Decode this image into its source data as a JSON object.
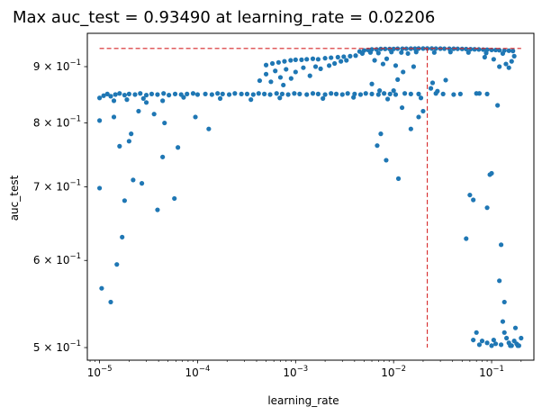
{
  "chart_data": {
    "type": "scatter",
    "title": "Max auc_test = 0.93490 at learning_rate = 0.02206",
    "xlabel": "learning_rate",
    "ylabel": "auc_test",
    "xscale": "log",
    "yscale": "log",
    "xlim": [
      7.5e-06,
      0.27
    ],
    "ylim": [
      0.487,
      0.965
    ],
    "x_ticks": [
      {
        "value": 1e-05,
        "base": "10",
        "exp": "−5"
      },
      {
        "value": 0.0001,
        "base": "10",
        "exp": "−4"
      },
      {
        "value": 0.001,
        "base": "10",
        "exp": "−3"
      },
      {
        "value": 0.01,
        "base": "10",
        "exp": "−2"
      },
      {
        "value": 0.1,
        "base": "10",
        "exp": "−1"
      }
    ],
    "y_ticks": [
      {
        "value": 0.5,
        "mant": "5",
        "base": "10",
        "exp": "−1"
      },
      {
        "value": 0.6,
        "mant": "6",
        "base": "10",
        "exp": "−1"
      },
      {
        "value": 0.7,
        "mant": "7",
        "base": "10",
        "exp": "−1"
      },
      {
        "value": 0.8,
        "mant": "8",
        "base": "10",
        "exp": "−1"
      },
      {
        "value": 0.9,
        "mant": "9",
        "base": "10",
        "exp": "−1"
      }
    ],
    "best": {
      "x": 0.02206,
      "y": 0.9349
    },
    "ref_line_x_start": 1e-05,
    "ref_line_x_end": 0.2,
    "ref_line_y_bottom": 0.5,
    "colors": {
      "points": "#1f77b4",
      "reference": "#d62728"
    },
    "grid": false,
    "series": [
      {
        "points": [
          [
            1e-05,
            0.698
          ],
          [
            1e-05,
            0.804
          ],
          [
            1.05e-05,
            0.566
          ],
          [
            1.3e-05,
            0.55
          ],
          [
            1.5e-05,
            0.595
          ],
          [
            1.4e-05,
            0.81
          ],
          [
            1.6e-05,
            0.762
          ],
          [
            1.7e-05,
            0.63
          ],
          [
            1.8e-05,
            0.68
          ],
          [
            2e-05,
            0.77
          ],
          [
            2.1e-05,
            0.782
          ],
          [
            2.2e-05,
            0.71
          ],
          [
            2.5e-05,
            0.82
          ],
          [
            2.7e-05,
            0.705
          ],
          [
            3e-05,
            0.835
          ],
          [
            3.6e-05,
            0.815
          ],
          [
            3.9e-05,
            0.667
          ],
          [
            4.4e-05,
            0.745
          ],
          [
            4.6e-05,
            0.8
          ],
          [
            5.8e-05,
            0.683
          ],
          [
            6.3e-05,
            0.76
          ],
          [
            9.5e-05,
            0.81
          ],
          [
            0.00013,
            0.79
          ],
          [
            1e-05,
            0.843
          ],
          [
            1.1e-05,
            0.847
          ],
          [
            1.2e-05,
            0.85
          ],
          [
            1.3e-05,
            0.846
          ],
          [
            1.45e-05,
            0.849
          ],
          [
            1.6e-05,
            0.851
          ],
          [
            1.8e-05,
            0.848
          ],
          [
            2e-05,
            0.85
          ],
          [
            2.3e-05,
            0.849
          ],
          [
            2.6e-05,
            0.851
          ],
          [
            3e-05,
            0.848
          ],
          [
            3.4e-05,
            0.85
          ],
          [
            3.9e-05,
            0.849
          ],
          [
            4.5e-05,
            0.851
          ],
          [
            5.1e-05,
            0.848
          ],
          [
            5.9e-05,
            0.85
          ],
          [
            6.8e-05,
            0.849
          ],
          [
            7.8e-05,
            0.85
          ],
          [
            9e-05,
            0.851
          ],
          [
            0.0001,
            0.849
          ],
          [
            0.00012,
            0.85
          ],
          [
            0.00014,
            0.849
          ],
          [
            0.00016,
            0.851
          ],
          [
            0.00018,
            0.85
          ],
          [
            0.00021,
            0.849
          ],
          [
            0.00024,
            0.851
          ],
          [
            0.00028,
            0.85
          ],
          [
            0.00032,
            0.85
          ],
          [
            0.00037,
            0.849
          ],
          [
            0.00042,
            0.851
          ],
          [
            0.00048,
            0.85
          ],
          [
            0.00055,
            0.849
          ],
          [
            0.00064,
            0.851
          ],
          [
            0.00073,
            0.85
          ],
          [
            0.00084,
            0.849
          ],
          [
            0.00097,
            0.851
          ],
          [
            0.0011,
            0.85
          ],
          [
            0.0013,
            0.849
          ],
          [
            0.0015,
            0.851
          ],
          [
            0.0017,
            0.85
          ],
          [
            0.002,
            0.849
          ],
          [
            0.0023,
            0.851
          ],
          [
            0.0026,
            0.85
          ],
          [
            0.003,
            0.849
          ],
          [
            0.0034,
            0.851
          ],
          [
            0.004,
            0.85
          ],
          [
            0.0046,
            0.849
          ],
          [
            0.0052,
            0.851
          ],
          [
            0.006,
            0.85
          ],
          [
            0.007,
            0.849
          ],
          [
            0.008,
            0.851
          ],
          [
            0.0092,
            0.85
          ],
          [
            0.0105,
            0.849
          ],
          [
            0.013,
            0.851
          ],
          [
            0.015,
            0.85
          ],
          [
            0.018,
            0.85
          ],
          [
            0.027,
            0.851
          ],
          [
            0.032,
            0.85
          ],
          [
            0.041,
            0.849
          ],
          [
            0.048,
            0.85
          ],
          [
            0.075,
            0.851
          ],
          [
            0.09,
            0.85
          ],
          [
            1.4e-05,
            0.838
          ],
          [
            1.9e-05,
            0.84
          ],
          [
            2.8e-05,
            0.842
          ],
          [
            4.4e-05,
            0.838
          ],
          [
            7.2e-05,
            0.844
          ],
          [
            0.00017,
            0.842
          ],
          [
            0.00035,
            0.84
          ],
          [
            0.00069,
            0.843
          ],
          [
            0.0019,
            0.842
          ],
          [
            0.0039,
            0.844
          ],
          [
            0.0087,
            0.841
          ],
          [
            0.019,
            0.843
          ],
          [
            0.00043,
            0.874
          ],
          [
            0.0005,
            0.886
          ],
          [
            0.00056,
            0.872
          ],
          [
            0.00062,
            0.892
          ],
          [
            0.0007,
            0.88
          ],
          [
            0.00075,
            0.866
          ],
          [
            0.0008,
            0.895
          ],
          [
            0.0009,
            0.878
          ],
          [
            0.001,
            0.89
          ],
          [
            0.0012,
            0.898
          ],
          [
            0.0014,
            0.883
          ],
          [
            0.0016,
            0.9
          ],
          [
            0.0018,
            0.896
          ],
          [
            0.0022,
            0.902
          ],
          [
            0.0025,
            0.906
          ],
          [
            0.0029,
            0.91
          ],
          [
            0.0033,
            0.912
          ],
          [
            0.0005,
            0.903
          ],
          [
            0.00058,
            0.906
          ],
          [
            0.00067,
            0.908
          ],
          [
            0.00077,
            0.91
          ],
          [
            0.00089,
            0.912
          ],
          [
            0.001,
            0.913
          ],
          [
            0.00115,
            0.913
          ],
          [
            0.0013,
            0.914
          ],
          [
            0.0015,
            0.915
          ],
          [
            0.0017,
            0.914
          ],
          [
            0.002,
            0.916
          ],
          [
            0.0023,
            0.917
          ],
          [
            0.0027,
            0.918
          ],
          [
            0.0031,
            0.919
          ],
          [
            0.0036,
            0.92
          ],
          [
            0.0041,
            0.921
          ],
          [
            0.0045,
            0.929
          ],
          [
            0.005,
            0.931
          ],
          [
            0.0055,
            0.932
          ],
          [
            0.006,
            0.933
          ],
          [
            0.0067,
            0.933
          ],
          [
            0.0074,
            0.934
          ],
          [
            0.0082,
            0.934
          ],
          [
            0.0091,
            0.934
          ],
          [
            0.01,
            0.934
          ],
          [
            0.011,
            0.9345
          ],
          [
            0.0123,
            0.9345
          ],
          [
            0.0135,
            0.9345
          ],
          [
            0.015,
            0.9346
          ],
          [
            0.0165,
            0.9347
          ],
          [
            0.018,
            0.9348
          ],
          [
            0.02,
            0.9348
          ],
          [
            0.02206,
            0.9349
          ],
          [
            0.0245,
            0.9348
          ],
          [
            0.027,
            0.9347
          ],
          [
            0.03,
            0.9346
          ],
          [
            0.033,
            0.9345
          ],
          [
            0.037,
            0.9344
          ],
          [
            0.041,
            0.9343
          ],
          [
            0.045,
            0.9342
          ],
          [
            0.05,
            0.934
          ],
          [
            0.055,
            0.9338
          ],
          [
            0.061,
            0.9335
          ],
          [
            0.067,
            0.9333
          ],
          [
            0.074,
            0.933
          ],
          [
            0.082,
            0.9327
          ],
          [
            0.09,
            0.9325
          ],
          [
            0.1,
            0.932
          ],
          [
            0.11,
            0.9318
          ],
          [
            0.12,
            0.9315
          ],
          [
            0.135,
            0.931
          ],
          [
            0.15,
            0.9305
          ],
          [
            0.165,
            0.93
          ],
          [
            0.0048,
            0.925
          ],
          [
            0.0058,
            0.927
          ],
          [
            0.007,
            0.926
          ],
          [
            0.0095,
            0.928
          ],
          [
            0.012,
            0.927
          ],
          [
            0.017,
            0.928
          ],
          [
            0.026,
            0.927
          ],
          [
            0.038,
            0.928
          ],
          [
            0.058,
            0.927
          ],
          [
            0.088,
            0.926
          ],
          [
            0.13,
            0.925
          ],
          [
            0.0064,
            0.912
          ],
          [
            0.0078,
            0.905
          ],
          [
            0.0085,
            0.915
          ],
          [
            0.0105,
            0.902
          ],
          [
            0.011,
            0.876
          ],
          [
            0.0125,
            0.89
          ],
          [
            0.014,
            0.925
          ],
          [
            0.016,
            0.9
          ],
          [
            0.024,
            0.86
          ],
          [
            0.025,
            0.87
          ],
          [
            0.028,
            0.855
          ],
          [
            0.034,
            0.875
          ],
          [
            0.006,
            0.868
          ],
          [
            0.0072,
            0.856
          ],
          [
            0.0068,
            0.763
          ],
          [
            0.0074,
            0.782
          ],
          [
            0.0084,
            0.74
          ],
          [
            0.01,
            0.856
          ],
          [
            0.0112,
            0.712
          ],
          [
            0.0122,
            0.826
          ],
          [
            0.015,
            0.79
          ],
          [
            0.018,
            0.81
          ],
          [
            0.02,
            0.82
          ],
          [
            0.055,
            0.628
          ],
          [
            0.06,
            0.688
          ],
          [
            0.065,
            0.681
          ],
          [
            0.07,
            0.851
          ],
          [
            0.09,
            0.67
          ],
          [
            0.096,
            0.718
          ],
          [
            0.1,
            0.72
          ],
          [
            0.115,
            0.83
          ],
          [
            0.125,
            0.62
          ],
          [
            0.135,
            0.55
          ],
          [
            0.065,
            0.508
          ],
          [
            0.07,
            0.516
          ],
          [
            0.075,
            0.503
          ],
          [
            0.08,
            0.507
          ],
          [
            0.09,
            0.505
          ],
          [
            0.1,
            0.502
          ],
          [
            0.11,
            0.504
          ],
          [
            0.12,
            0.575
          ],
          [
            0.125,
            0.503
          ],
          [
            0.13,
            0.528
          ],
          [
            0.135,
            0.516
          ],
          [
            0.142,
            0.51
          ],
          [
            0.15,
            0.505
          ],
          [
            0.155,
            0.502
          ],
          [
            0.16,
            0.502
          ],
          [
            0.17,
            0.507
          ],
          [
            0.175,
            0.521
          ],
          [
            0.18,
            0.504
          ],
          [
            0.185,
            0.502
          ],
          [
            0.19,
            0.502
          ],
          [
            0.2,
            0.51
          ],
          [
            0.105,
            0.508
          ],
          [
            0.12,
            0.9
          ],
          [
            0.14,
            0.905
          ],
          [
            0.15,
            0.898
          ],
          [
            0.16,
            0.91
          ],
          [
            0.17,
            0.92
          ],
          [
            0.105,
            0.914
          ],
          [
            0.085,
            0.918
          ]
        ]
      }
    ]
  }
}
